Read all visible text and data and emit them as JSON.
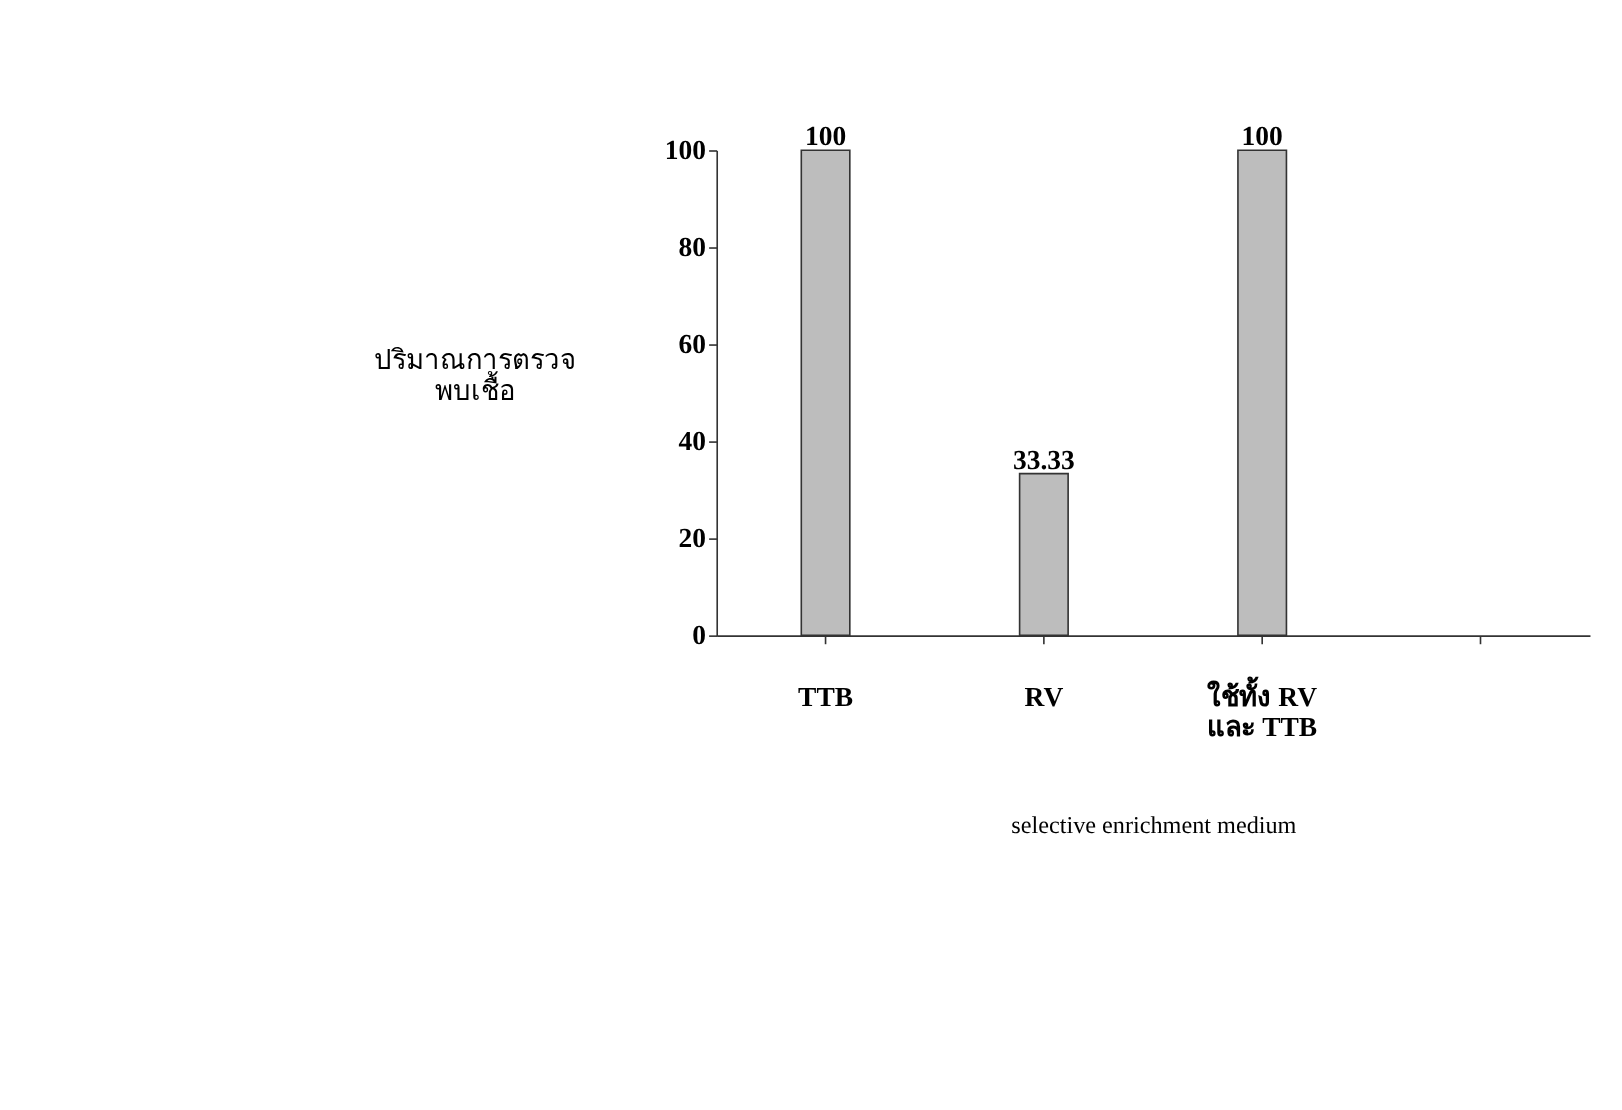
{
  "chart_data": {
    "type": "bar",
    "categories": [
      "TTB",
      "RV",
      "ใช้ทั้ง RV\nและ TTB",
      null
    ],
    "values": [
      100,
      33.33,
      100,
      null
    ],
    "color": "#bdbdbd",
    "ylim": [
      0,
      100
    ],
    "yticks": [
      0,
      20,
      40,
      60,
      80,
      100
    ],
    "ylabel": "ปริมาณการตรวจ\nพบเชื้อ",
    "xlabel": "selective enrichment medium",
    "data_labels": true,
    "grid": false
  }
}
